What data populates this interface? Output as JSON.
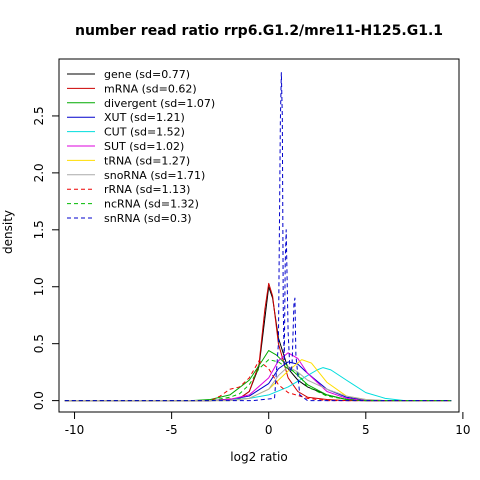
{
  "chart_data": {
    "type": "line",
    "title": "number read ratio rrp6.G1.2/mre11-H125.G1.1",
    "xlabel": "log2 ratio",
    "ylabel": "density",
    "xlim": [
      -10.8,
      9.8
    ],
    "ylim": [
      -0.1,
      3.0
    ],
    "x_ticks": [
      -10,
      -5,
      0,
      5,
      10
    ],
    "y_ticks": [
      0.0,
      0.5,
      1.0,
      1.5,
      2.0,
      2.5
    ],
    "x_tick_labels": [
      "-10",
      "-5",
      "0",
      "5",
      "10"
    ],
    "y_tick_labels": [
      "0.0",
      "0.5",
      "1.0",
      "1.5",
      "2.0",
      "2.5"
    ],
    "legend_position": "top-left",
    "grid": false,
    "series": [
      {
        "name": "gene (sd=0.77)",
        "color": "#000000",
        "dash": "solid",
        "points": [
          [
            -10.5,
            0
          ],
          [
            -3,
            0
          ],
          [
            -1.5,
            0.02
          ],
          [
            -1,
            0.08
          ],
          [
            -0.5,
            0.3
          ],
          [
            -0.2,
            0.72
          ],
          [
            0,
            1.0
          ],
          [
            0.2,
            0.9
          ],
          [
            0.5,
            0.55
          ],
          [
            1,
            0.28
          ],
          [
            1.5,
            0.18
          ],
          [
            2,
            0.12
          ],
          [
            3,
            0.05
          ],
          [
            4,
            0.01
          ],
          [
            5,
            0
          ],
          [
            9.4,
            0
          ]
        ]
      },
      {
        "name": "mRNA (sd=0.62)",
        "color": "#cc0000",
        "dash": "solid",
        "points": [
          [
            -10.5,
            0
          ],
          [
            -3,
            0
          ],
          [
            -1.5,
            0.02
          ],
          [
            -1,
            0.08
          ],
          [
            -0.5,
            0.32
          ],
          [
            -0.2,
            0.8
          ],
          [
            0,
            1.03
          ],
          [
            0.2,
            0.92
          ],
          [
            0.5,
            0.5
          ],
          [
            1,
            0.2
          ],
          [
            1.5,
            0.08
          ],
          [
            2,
            0.03
          ],
          [
            3,
            0.01
          ],
          [
            4,
            0
          ],
          [
            9.4,
            0
          ]
        ]
      },
      {
        "name": "divergent (sd=1.07)",
        "color": "#00aa00",
        "dash": "solid",
        "points": [
          [
            -10.5,
            0
          ],
          [
            -4,
            0
          ],
          [
            -3,
            0.01
          ],
          [
            -2,
            0.05
          ],
          [
            -1,
            0.18
          ],
          [
            -0.3,
            0.36
          ],
          [
            0,
            0.44
          ],
          [
            0.4,
            0.4
          ],
          [
            1,
            0.3
          ],
          [
            1.5,
            0.22
          ],
          [
            2,
            0.14
          ],
          [
            3,
            0.05
          ],
          [
            4,
            0.01
          ],
          [
            5,
            0
          ],
          [
            9.4,
            0
          ]
        ]
      },
      {
        "name": "XUT (sd=1.21)",
        "color": "#0000cc",
        "dash": "solid",
        "points": [
          [
            -10.5,
            0
          ],
          [
            -3,
            0
          ],
          [
            -2,
            0.01
          ],
          [
            -1,
            0.04
          ],
          [
            0,
            0.15
          ],
          [
            0.5,
            0.28
          ],
          [
            1,
            0.34
          ],
          [
            1.5,
            0.32
          ],
          [
            2,
            0.24
          ],
          [
            2.5,
            0.17
          ],
          [
            3,
            0.1
          ],
          [
            4,
            0.03
          ],
          [
            5,
            0.005
          ],
          [
            6,
            0
          ],
          [
            9.4,
            0
          ]
        ]
      },
      {
        "name": "CUT (sd=1.52)",
        "color": "#00dddd",
        "dash": "solid",
        "points": [
          [
            -10.5,
            0
          ],
          [
            -3,
            0
          ],
          [
            -2,
            0.01
          ],
          [
            -1,
            0.02
          ],
          [
            0,
            0.05
          ],
          [
            1,
            0.12
          ],
          [
            1.8,
            0.2
          ],
          [
            2.5,
            0.27
          ],
          [
            2.8,
            0.29
          ],
          [
            3.2,
            0.27
          ],
          [
            4,
            0.18
          ],
          [
            5,
            0.07
          ],
          [
            6,
            0.02
          ],
          [
            7,
            0
          ],
          [
            9.4,
            0
          ]
        ]
      },
      {
        "name": "SUT (sd=1.02)",
        "color": "#dd00dd",
        "dash": "solid",
        "points": [
          [
            -10.5,
            0
          ],
          [
            -3,
            0
          ],
          [
            -2,
            0.01
          ],
          [
            -1,
            0.05
          ],
          [
            0,
            0.2
          ],
          [
            0.5,
            0.35
          ],
          [
            1,
            0.42
          ],
          [
            1.5,
            0.37
          ],
          [
            2,
            0.24
          ],
          [
            3,
            0.08
          ],
          [
            4,
            0.02
          ],
          [
            5,
            0
          ],
          [
            9.4,
            0
          ]
        ]
      },
      {
        "name": "tRNA (sd=1.27)",
        "color": "#ffdd00",
        "dash": "solid",
        "points": [
          [
            -10.5,
            0
          ],
          [
            -2,
            0
          ],
          [
            -1,
            0.02
          ],
          [
            0,
            0.1
          ],
          [
            1,
            0.26
          ],
          [
            1.7,
            0.36
          ],
          [
            2.2,
            0.33
          ],
          [
            3,
            0.16
          ],
          [
            4,
            0.04
          ],
          [
            5,
            0.01
          ],
          [
            6,
            0
          ],
          [
            9.4,
            0
          ]
        ]
      },
      {
        "name": "snoRNA (sd=1.71)",
        "color": "#aaaaaa",
        "dash": "solid",
        "points": [
          [
            -10.5,
            0
          ],
          [
            -2,
            0
          ],
          [
            -1,
            0.02
          ],
          [
            0,
            0.1
          ],
          [
            0.5,
            0.22
          ],
          [
            1,
            0.3
          ],
          [
            1.5,
            0.25
          ],
          [
            2,
            0.18
          ],
          [
            3,
            0.1
          ],
          [
            4,
            0.04
          ],
          [
            5,
            0.01
          ],
          [
            6,
            0
          ],
          [
            9.4,
            0
          ]
        ]
      },
      {
        "name": "rRNA (sd=1.13)",
        "color": "#ee0000",
        "dash": "dashed",
        "points": [
          [
            -10.5,
            0
          ],
          [
            -3,
            0
          ],
          [
            -2.5,
            0.04
          ],
          [
            -2,
            0.1
          ],
          [
            -1.5,
            0.12
          ],
          [
            -1,
            0.2
          ],
          [
            -0.5,
            0.35
          ],
          [
            0,
            0.28
          ],
          [
            0.5,
            0.14
          ],
          [
            1,
            0.07
          ],
          [
            2,
            0.02
          ],
          [
            3,
            0
          ],
          [
            9.4,
            0
          ]
        ]
      },
      {
        "name": "ncRNA (sd=1.32)",
        "color": "#00bb00",
        "dash": "dashed",
        "points": [
          [
            -10.5,
            0
          ],
          [
            -3,
            0
          ],
          [
            -2,
            0.03
          ],
          [
            -1.5,
            0.06
          ],
          [
            -1,
            0.14
          ],
          [
            -0.5,
            0.28
          ],
          [
            0,
            0.36
          ],
          [
            0.5,
            0.34
          ],
          [
            1,
            0.28
          ],
          [
            1.5,
            0.24
          ],
          [
            2,
            0.12
          ],
          [
            3,
            0.04
          ],
          [
            4,
            0.01
          ],
          [
            5,
            0
          ],
          [
            9.4,
            0
          ]
        ]
      },
      {
        "name": "snRNA (sd=0.3)",
        "color": "#0000cc",
        "dash": "dashed",
        "points": [
          [
            -10.5,
            0
          ],
          [
            -0.8,
            0
          ],
          [
            0.3,
            0.02
          ],
          [
            0.5,
            0.5
          ],
          [
            0.6,
            2.45
          ],
          [
            0.65,
            2.88
          ],
          [
            0.7,
            2.5
          ],
          [
            0.75,
            0.8
          ],
          [
            0.8,
            0.32
          ],
          [
            0.85,
            1.2
          ],
          [
            0.9,
            1.5
          ],
          [
            1.0,
            0.6
          ],
          [
            1.1,
            0.25
          ],
          [
            1.2,
            0.3
          ],
          [
            1.3,
            0.85
          ],
          [
            1.35,
            0.9
          ],
          [
            1.4,
            0.4
          ],
          [
            1.6,
            0.05
          ],
          [
            2,
            0
          ],
          [
            9.4,
            0
          ]
        ]
      }
    ]
  }
}
